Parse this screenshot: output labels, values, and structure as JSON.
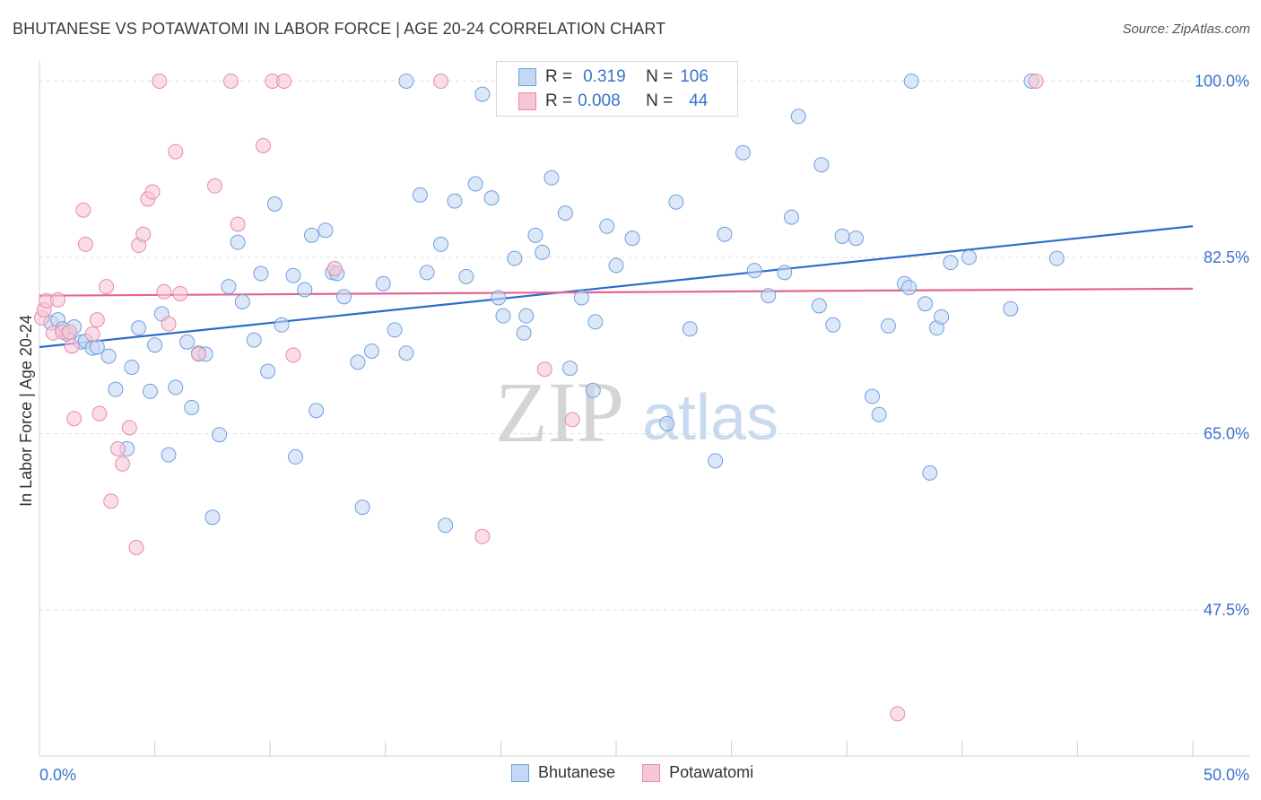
{
  "title": "BHUTANESE VS POTAWATOMI IN LABOR FORCE | AGE 20-24 CORRELATION CHART",
  "source": "Source: ZipAtlas.com",
  "watermark": {
    "zip": "ZIP",
    "atlas": "atlas"
  },
  "legend": {
    "rows": [
      {
        "r_label": "R =",
        "r_value": "0.319",
        "n_label": "N =",
        "n_value": "106"
      },
      {
        "r_label": "R =",
        "r_value": "0.008",
        "n_label": "N =",
        "n_value": "44"
      }
    ]
  },
  "chart_data": {
    "type": "scatter",
    "title": "BHUTANESE VS POTAWATOMI IN LABOR FORCE | AGE 20-24 CORRELATION CHART",
    "xlabel": "",
    "ylabel": "In Labor Force | Age 20-24",
    "xlim": [
      0,
      50
    ],
    "ylim": [
      33,
      102
    ],
    "x_tick_labels": [
      "0.0%",
      "50.0%"
    ],
    "y_ticks": [
      47.5,
      65.0,
      82.5,
      100.0
    ],
    "y_tick_labels": [
      "47.5%",
      "65.0%",
      "82.5%",
      "100.0%"
    ],
    "grid": "horizontal dashed",
    "legend_position": "top-center",
    "series": [
      {
        "name": "Bhutanese",
        "color": "#6f9fe0",
        "fill": "#c5d8f3",
        "r": 0.319,
        "n": 106,
        "trend": [
          [
            0,
            73.6
          ],
          [
            50,
            85.6
          ]
        ],
        "points": [
          [
            0.5,
            76.0
          ],
          [
            0.8,
            76.3
          ],
          [
            1.0,
            75.4
          ],
          [
            1.2,
            74.9
          ],
          [
            1.5,
            75.6
          ],
          [
            1.8,
            74.1
          ],
          [
            2.0,
            74.2
          ],
          [
            2.3,
            73.5
          ],
          [
            2.5,
            73.6
          ],
          [
            3.0,
            72.7
          ],
          [
            3.3,
            69.4
          ],
          [
            3.8,
            63.5
          ],
          [
            4.0,
            71.6
          ],
          [
            4.3,
            75.5
          ],
          [
            4.8,
            69.2
          ],
          [
            5.0,
            73.8
          ],
          [
            5.3,
            76.9
          ],
          [
            5.6,
            62.9
          ],
          [
            5.9,
            69.6
          ],
          [
            6.4,
            74.1
          ],
          [
            6.6,
            67.6
          ],
          [
            6.9,
            73.0
          ],
          [
            7.2,
            72.9
          ],
          [
            7.5,
            56.7
          ],
          [
            7.8,
            64.9
          ],
          [
            8.2,
            79.6
          ],
          [
            8.6,
            84.0
          ],
          [
            8.8,
            78.1
          ],
          [
            9.3,
            74.3
          ],
          [
            9.6,
            80.9
          ],
          [
            9.9,
            71.2
          ],
          [
            10.2,
            87.8
          ],
          [
            10.5,
            75.8
          ],
          [
            11.0,
            80.7
          ],
          [
            11.1,
            62.7
          ],
          [
            11.5,
            79.3
          ],
          [
            11.8,
            84.7
          ],
          [
            12.0,
            67.3
          ],
          [
            12.4,
            85.2
          ],
          [
            12.7,
            81.0
          ],
          [
            12.9,
            80.9
          ],
          [
            13.2,
            78.6
          ],
          [
            13.8,
            72.1
          ],
          [
            14.0,
            57.7
          ],
          [
            14.4,
            73.2
          ],
          [
            14.9,
            79.9
          ],
          [
            15.4,
            75.3
          ],
          [
            15.9,
            73.0
          ],
          [
            15.9,
            100.0
          ],
          [
            16.5,
            88.7
          ],
          [
            16.8,
            81.0
          ],
          [
            17.4,
            83.8
          ],
          [
            17.6,
            55.9
          ],
          [
            18.0,
            88.1
          ],
          [
            18.5,
            80.6
          ],
          [
            18.9,
            89.8
          ],
          [
            19.2,
            98.7
          ],
          [
            19.6,
            88.4
          ],
          [
            19.9,
            78.5
          ],
          [
            20.1,
            76.7
          ],
          [
            20.6,
            82.4
          ],
          [
            21.0,
            75.0
          ],
          [
            21.1,
            76.7
          ],
          [
            21.5,
            84.7
          ],
          [
            21.8,
            83.0
          ],
          [
            22.2,
            90.4
          ],
          [
            22.8,
            86.9
          ],
          [
            23.0,
            71.5
          ],
          [
            23.5,
            78.5
          ],
          [
            24.0,
            69.3
          ],
          [
            24.1,
            76.1
          ],
          [
            24.6,
            85.6
          ],
          [
            25.0,
            81.7
          ],
          [
            25.7,
            84.4
          ],
          [
            27.2,
            66.0
          ],
          [
            27.6,
            88.0
          ],
          [
            28.2,
            75.4
          ],
          [
            29.3,
            62.3
          ],
          [
            29.7,
            84.8
          ],
          [
            30.5,
            92.9
          ],
          [
            31.0,
            81.2
          ],
          [
            31.6,
            78.7
          ],
          [
            32.3,
            81.0
          ],
          [
            32.6,
            86.5
          ],
          [
            32.9,
            96.5
          ],
          [
            33.8,
            77.7
          ],
          [
            33.9,
            91.7
          ],
          [
            34.4,
            75.8
          ],
          [
            34.8,
            84.6
          ],
          [
            35.4,
            84.4
          ],
          [
            36.1,
            68.7
          ],
          [
            36.4,
            66.9
          ],
          [
            36.8,
            75.7
          ],
          [
            37.8,
            100.0
          ],
          [
            37.5,
            79.9
          ],
          [
            37.7,
            79.5
          ],
          [
            38.4,
            77.9
          ],
          [
            38.6,
            61.1
          ],
          [
            38.9,
            75.5
          ],
          [
            39.1,
            76.6
          ],
          [
            39.5,
            82.0
          ],
          [
            40.3,
            82.5
          ],
          [
            42.1,
            77.4
          ],
          [
            43.0,
            100.0
          ],
          [
            44.1,
            82.4
          ]
        ]
      },
      {
        "name": "Potawatomi",
        "color": "#e88aa8",
        "fill": "#f7c6d5",
        "r": 0.008,
        "n": 44,
        "trend": [
          [
            0,
            78.7
          ],
          [
            50,
            79.4
          ]
        ],
        "points": [
          [
            0.1,
            76.5
          ],
          [
            0.2,
            77.3
          ],
          [
            0.3,
            78.2
          ],
          [
            0.6,
            75.0
          ],
          [
            0.8,
            78.3
          ],
          [
            1.0,
            75.1
          ],
          [
            1.3,
            75.1
          ],
          [
            1.4,
            73.7
          ],
          [
            1.5,
            66.5
          ],
          [
            1.9,
            87.2
          ],
          [
            2.0,
            83.8
          ],
          [
            2.3,
            74.9
          ],
          [
            2.5,
            76.3
          ],
          [
            2.6,
            67.0
          ],
          [
            2.9,
            79.6
          ],
          [
            3.1,
            58.3
          ],
          [
            3.4,
            63.5
          ],
          [
            3.6,
            62.0
          ],
          [
            3.9,
            65.6
          ],
          [
            4.2,
            53.7
          ],
          [
            4.3,
            83.7
          ],
          [
            4.5,
            84.8
          ],
          [
            4.7,
            88.3
          ],
          [
            4.9,
            89.0
          ],
          [
            5.2,
            100.0
          ],
          [
            5.4,
            79.1
          ],
          [
            5.6,
            75.9
          ],
          [
            5.9,
            93.0
          ],
          [
            6.1,
            78.9
          ],
          [
            6.9,
            72.9
          ],
          [
            7.6,
            89.6
          ],
          [
            8.3,
            100.0
          ],
          [
            8.6,
            85.8
          ],
          [
            9.7,
            93.6
          ],
          [
            10.1,
            100.0
          ],
          [
            10.6,
            100.0
          ],
          [
            11.0,
            72.8
          ],
          [
            12.8,
            81.4
          ],
          [
            17.4,
            100.0
          ],
          [
            19.2,
            54.8
          ],
          [
            21.9,
            71.4
          ],
          [
            23.1,
            66.4
          ],
          [
            37.2,
            37.2
          ],
          [
            43.2,
            100.0
          ]
        ]
      }
    ]
  },
  "bottom_legend": [
    {
      "label": "Bhutanese",
      "color": "#6f9fe0",
      "fill": "#c5d8f3"
    },
    {
      "label": "Potawatomi",
      "color": "#e88aa8",
      "fill": "#f7c6d5"
    }
  ]
}
